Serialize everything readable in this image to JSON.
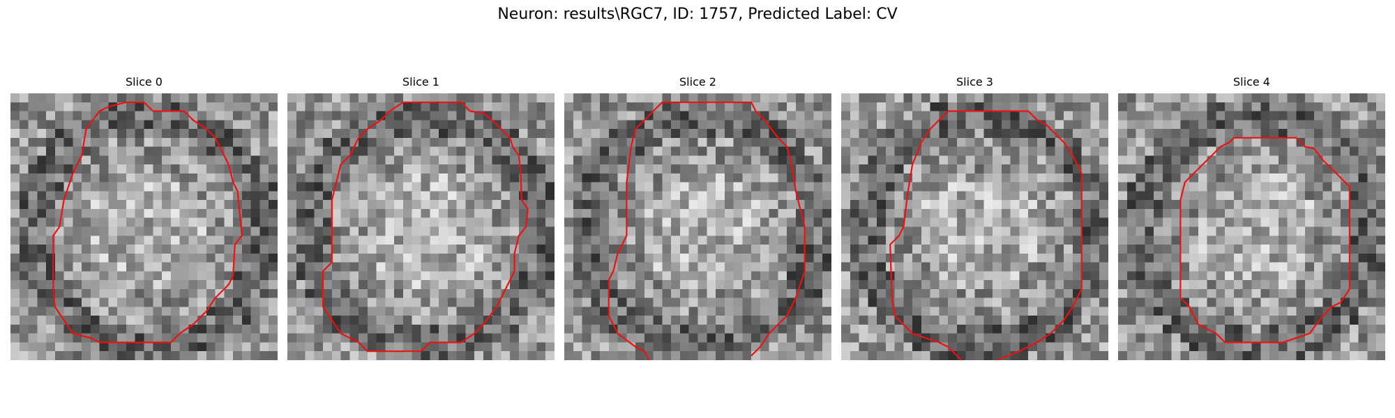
{
  "title": "Neuron: results\\RGC7, ID: 1757, Predicted Label: CV",
  "outline_color": "#ee1111",
  "slices": [
    {
      "label": "Slice 0"
    },
    {
      "label": "Slice 1"
    },
    {
      "label": "Slice 2"
    },
    {
      "label": "Slice 3"
    },
    {
      "label": "Slice 4"
    }
  ]
}
